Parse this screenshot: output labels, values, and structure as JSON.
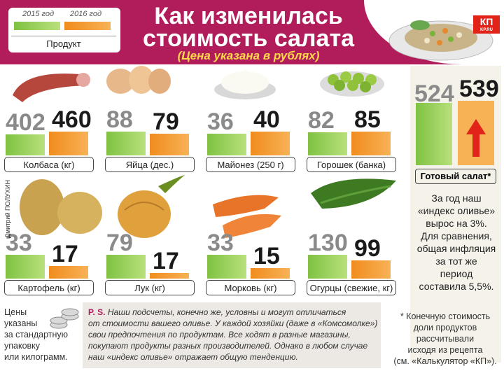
{
  "header": {
    "title_line1": "Как изменилась",
    "title_line2": "стоимость салата",
    "subtitle": "(Цена указана в рублях)",
    "logo_text": "КП",
    "logo_sub": "KP.RU"
  },
  "legend": {
    "year_old": "2015 год",
    "year_new": "2016 год",
    "title": "Продукт"
  },
  "colors": {
    "old": "#7fc242",
    "new": "#f08c1e",
    "header": "#b01d5a",
    "arrow": "#e2231a"
  },
  "chart_data": {
    "type": "bar",
    "title": "Как изменилась стоимость салата",
    "subtitle": "(Цена указана в рублях)",
    "series": [
      {
        "name": "2015 год",
        "values": [
          402,
          88,
          36,
          82,
          33,
          79,
          33,
          130,
          524
        ]
      },
      {
        "name": "2016 год",
        "values": [
          460,
          79,
          40,
          85,
          17,
          17,
          15,
          99,
          539
        ]
      }
    ],
    "categories": [
      "Колбаса (кг)",
      "Яйца (дес.)",
      "Майонез (250 г)",
      "Горошек (банка)",
      "Картофель (кг)",
      "Лук (кг)",
      "Морковь (кг)",
      "Огурцы (свежие, кг)",
      "Готовый салат*"
    ],
    "value_labels": {
      "old": [
        "402",
        "88",
        "36",
        "82",
        "33",
        "79",
        "33",
        "130",
        "524"
      ],
      "new": [
        "460",
        "79",
        "40",
        "85",
        "17",
        "17",
        "15",
        "99",
        "539"
      ]
    }
  },
  "ready_salad": {
    "label": "Готовый салат*",
    "text": [
      "За год наш",
      "«индекс оливье»",
      "вырос на 3%.",
      "Для сравнения,",
      "общая инфляция",
      "за тот же",
      "период",
      "составила 5,5%."
    ]
  },
  "notes": {
    "left": [
      "Цены",
      "указаны",
      "за стандартную",
      "упаковку",
      "или килограмм."
    ],
    "ps_head": "P. S.",
    "ps_lines": [
      "Наши подсчеты, конечно же, условны и могут отличаться",
      "от стоимости вашего оливье. У каждой хозяйки (даже в «Комсомолке»)",
      "свои предпочтения по продуктам. Все ходят в разные магазины,",
      "покупают продукты разных производителей. Однако в любом случае",
      "наш «индекс оливье» отражает общую тенденцию."
    ],
    "right": [
      "* Конечную стоимость",
      "доли продуктов",
      "рассчитывали",
      "исходя из рецепта",
      "(см. «Калькулятор «КП»)."
    ],
    "credit": "Дмитрий ПОЛУХИН"
  }
}
